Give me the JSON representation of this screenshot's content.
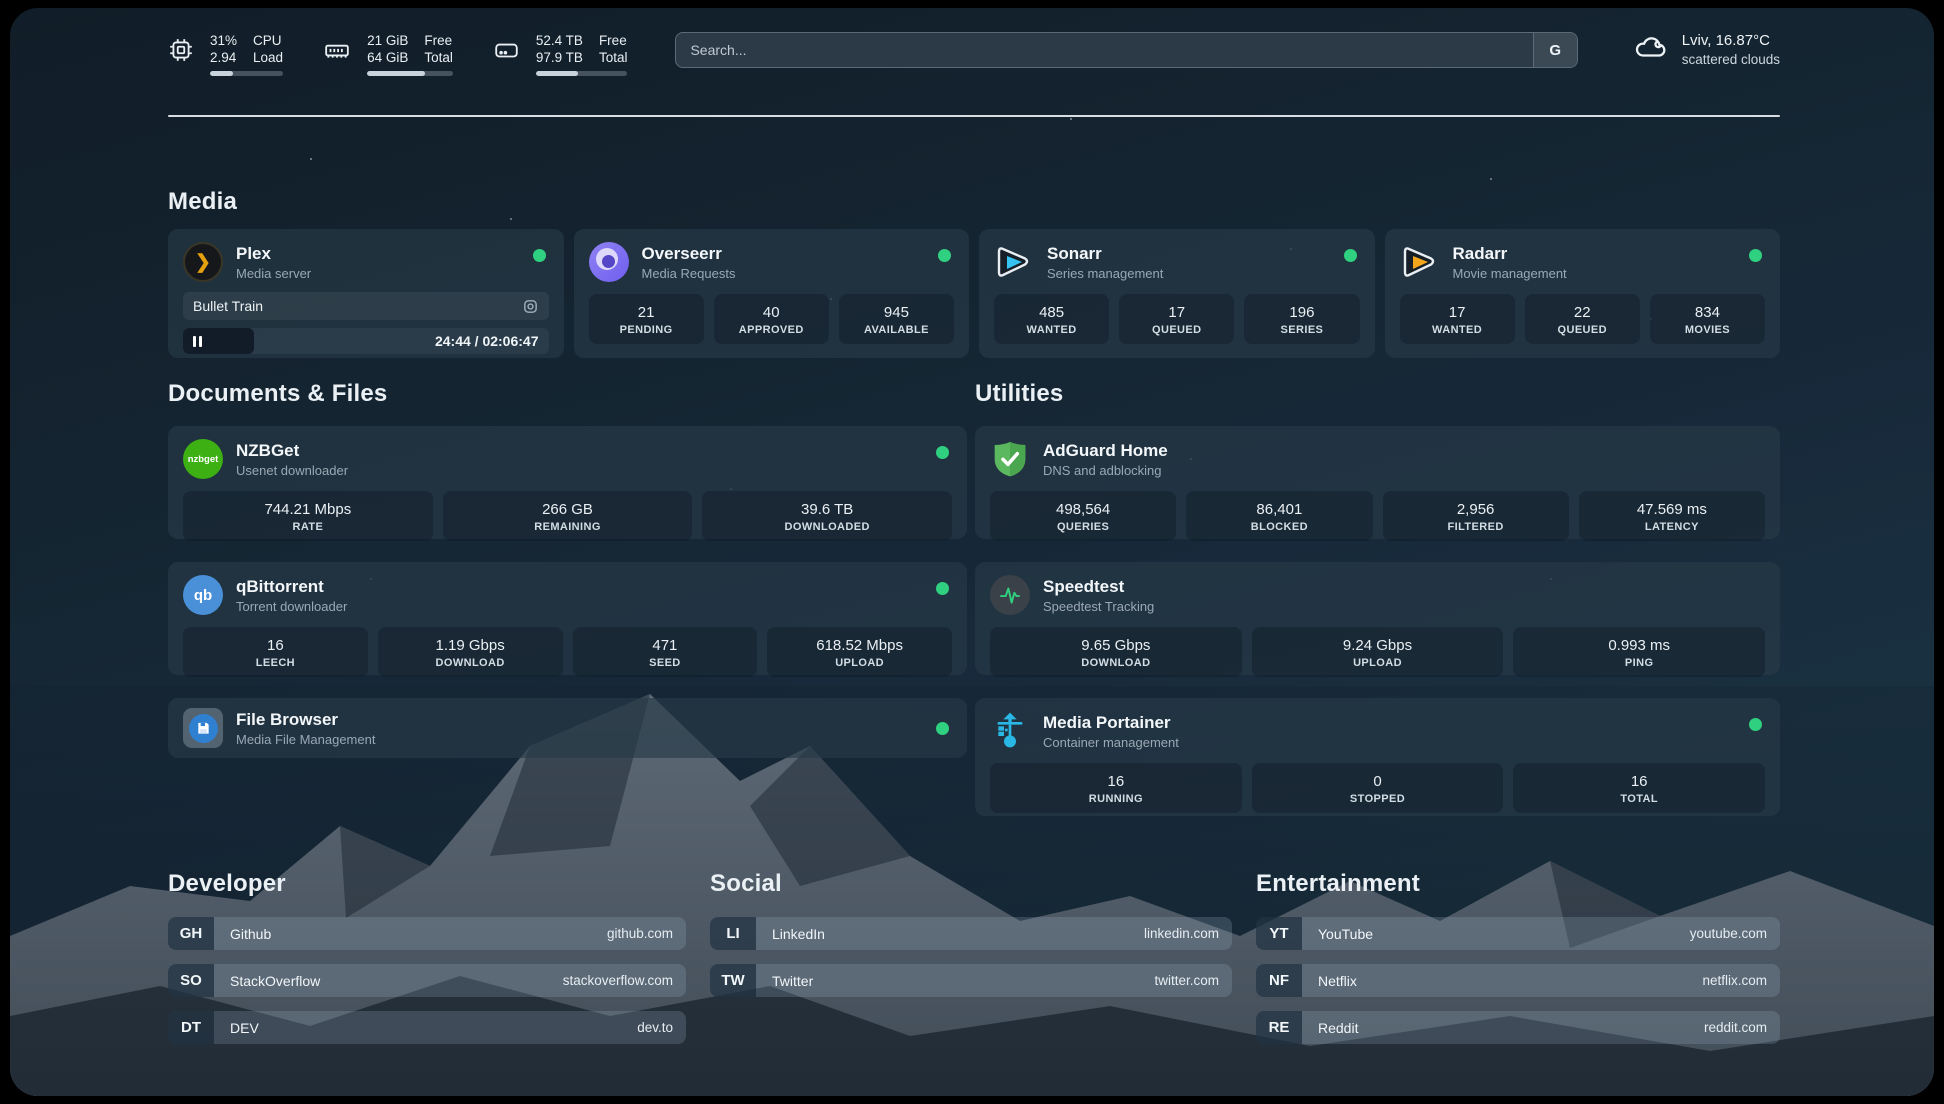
{
  "header": {
    "cpu": {
      "value_top": "31%",
      "value_bottom": "2.94",
      "label_top": "CPU",
      "label_bottom": "Load",
      "progress": 31
    },
    "memory": {
      "value_top": "21 GiB",
      "value_bottom": "64 GiB",
      "label_top": "Free",
      "label_bottom": "Total",
      "progress": 67
    },
    "disk": {
      "value_top": "52.4 TB",
      "value_bottom": "97.9 TB",
      "label_top": "Free",
      "label_bottom": "Total",
      "progress": 46
    },
    "search": {
      "placeholder": "Search...",
      "button_label": "G"
    },
    "weather": {
      "location": "Lviv, 16.87°C",
      "condition": "scattered clouds"
    }
  },
  "sections": {
    "media": {
      "title": "Media",
      "cards": [
        {
          "name": "Plex",
          "subtitle": "Media server",
          "now_playing": "Bullet Train",
          "time": "24:44 / 02:06:47",
          "progress": 19.5
        },
        {
          "name": "Overseerr",
          "subtitle": "Media Requests",
          "stats": [
            {
              "value": "21",
              "label": "PENDING"
            },
            {
              "value": "40",
              "label": "APPROVED"
            },
            {
              "value": "945",
              "label": "AVAILABLE"
            }
          ]
        },
        {
          "name": "Sonarr",
          "subtitle": "Series management",
          "stats": [
            {
              "value": "485",
              "label": "WANTED"
            },
            {
              "value": "17",
              "label": "QUEUED"
            },
            {
              "value": "196",
              "label": "SERIES"
            }
          ]
        },
        {
          "name": "Radarr",
          "subtitle": "Movie management",
          "stats": [
            {
              "value": "17",
              "label": "WANTED"
            },
            {
              "value": "22",
              "label": "QUEUED"
            },
            {
              "value": "834",
              "label": "MOVIES"
            }
          ]
        }
      ]
    },
    "documents": {
      "title": "Documents & Files",
      "cards": [
        {
          "name": "NZBGet",
          "subtitle": "Usenet downloader",
          "stats": [
            {
              "value": "744.21 Mbps",
              "label": "RATE"
            },
            {
              "value": "266 GB",
              "label": "REMAINING"
            },
            {
              "value": "39.6 TB",
              "label": "DOWNLOADED"
            }
          ]
        },
        {
          "name": "qBittorrent",
          "subtitle": "Torrent downloader",
          "stats": [
            {
              "value": "16",
              "label": "LEECH"
            },
            {
              "value": "1.19 Gbps",
              "label": "DOWNLOAD"
            },
            {
              "value": "471",
              "label": "SEED"
            },
            {
              "value": "618.52 Mbps",
              "label": "UPLOAD"
            }
          ]
        },
        {
          "name": "File Browser",
          "subtitle": "Media File Management",
          "stats": []
        }
      ]
    },
    "utilities": {
      "title": "Utilities",
      "cards": [
        {
          "name": "AdGuard Home",
          "subtitle": "DNS and adblocking",
          "stats": [
            {
              "value": "498,564",
              "label": "QUERIES"
            },
            {
              "value": "86,401",
              "label": "BLOCKED"
            },
            {
              "value": "2,956",
              "label": "FILTERED"
            },
            {
              "value": "47.569 ms",
              "label": "LATENCY"
            }
          ]
        },
        {
          "name": "Speedtest",
          "subtitle": "Speedtest Tracking",
          "stats": [
            {
              "value": "9.65 Gbps",
              "label": "DOWNLOAD"
            },
            {
              "value": "9.24 Gbps",
              "label": "UPLOAD"
            },
            {
              "value": "0.993 ms",
              "label": "PING"
            }
          ]
        },
        {
          "name": "Media Portainer",
          "subtitle": "Container management",
          "stats": [
            {
              "value": "16",
              "label": "RUNNING"
            },
            {
              "value": "0",
              "label": "STOPPED"
            },
            {
              "value": "16",
              "label": "TOTAL"
            }
          ]
        }
      ]
    },
    "developer": {
      "title": "Developer",
      "links": [
        {
          "abbr": "GH",
          "name": "Github",
          "url": "github.com"
        },
        {
          "abbr": "SO",
          "name": "StackOverflow",
          "url": "stackoverflow.com"
        },
        {
          "abbr": "DT",
          "name": "DEV",
          "url": "dev.to"
        }
      ]
    },
    "social": {
      "title": "Social",
      "links": [
        {
          "abbr": "LI",
          "name": "LinkedIn",
          "url": "linkedin.com"
        },
        {
          "abbr": "TW",
          "name": "Twitter",
          "url": "twitter.com"
        }
      ]
    },
    "entertainment": {
      "title": "Entertainment",
      "links": [
        {
          "abbr": "YT",
          "name": "YouTube",
          "url": "youtube.com"
        },
        {
          "abbr": "NF",
          "name": "Netflix",
          "url": "netflix.com"
        },
        {
          "abbr": "RE",
          "name": "Reddit",
          "url": "reddit.com"
        }
      ]
    }
  },
  "icons": {
    "plex_glyph": "❯",
    "nzbget_glyph": "nzbget",
    "qbittorrent_glyph": "qb"
  },
  "colors": {
    "status_online": "#2fd07f",
    "plex_gold": "#e5a00d",
    "sonarr_blue": "#36c3f2",
    "radarr_orange": "#f4a71d",
    "nzbget_green": "#3db014",
    "qbittorrent_blue": "#4a90d9",
    "adguard_green": "#62bb66",
    "speedtest_green": "#2fd07f",
    "portainer_blue": "#29b8e5",
    "filebrowser_blue": "#2f80d0",
    "overseerr_purple": "#8a7ff0"
  }
}
